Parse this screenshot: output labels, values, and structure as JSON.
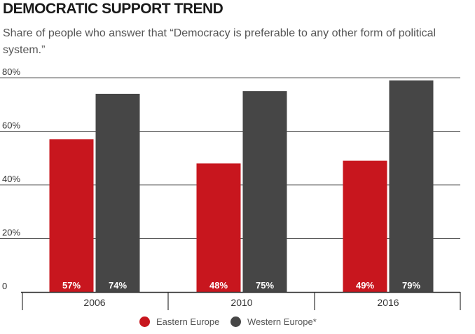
{
  "colors": {
    "eastern": "#c8161e",
    "western": "#464646",
    "grid": "#333333",
    "text": "#333333",
    "label": "#ffffff"
  },
  "chart_data": {
    "type": "bar",
    "title": "DEMOCRATIC SUPPORT TREND",
    "subtitle": "Share of people who answer that “Democracy is preferable to any other form of political system.”",
    "categories": [
      "2006",
      "2010",
      "2016"
    ],
    "series": [
      {
        "name": "Eastern Europe",
        "values": [
          57,
          48,
          49
        ],
        "labels": [
          "57%",
          "48%",
          "49%"
        ]
      },
      {
        "name": "Western Europe*",
        "values": [
          74,
          75,
          79
        ],
        "labels": [
          "74%",
          "75%",
          "79%"
        ]
      }
    ],
    "ylim": [
      0,
      80
    ],
    "yticks": [
      0,
      20,
      40,
      60,
      80
    ],
    "ytick_labels": [
      "0",
      "20%",
      "40%",
      "60%",
      "80%"
    ],
    "grid": true,
    "legend_position": "bottom-center"
  }
}
